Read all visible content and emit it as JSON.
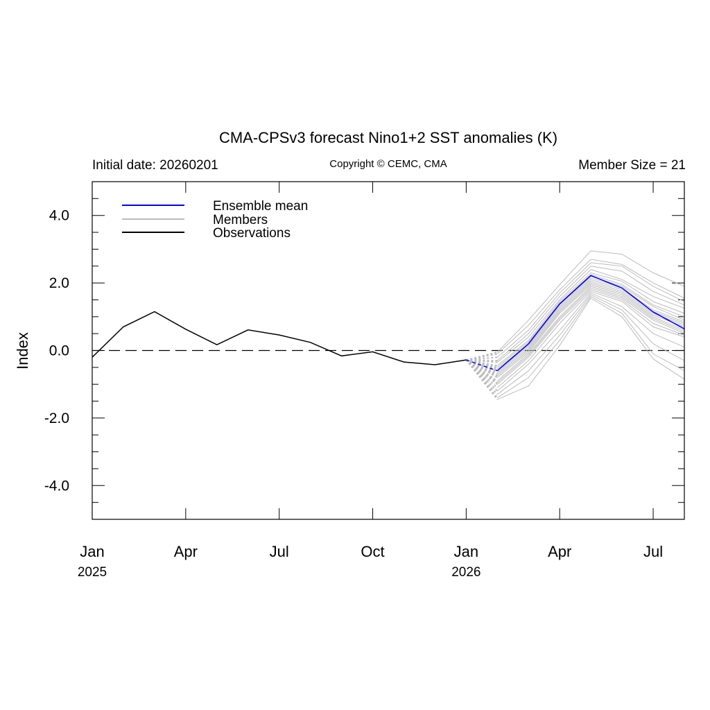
{
  "chart_data": {
    "type": "line",
    "title": "CMA-CPSv3 forecast Nino1+2 SST anomalies (K)",
    "subtitle_left": "Initial date: 20260201",
    "subtitle_center": "Copyright © CEMC, CMA",
    "subtitle_right": "Member Size = 21",
    "ylabel": "Index",
    "xlabel": "",
    "ylim": [
      -5,
      5
    ],
    "xlim": [
      0,
      19
    ],
    "y_ticks": [
      -4,
      -2,
      0,
      2,
      4
    ],
    "y_tick_labels": [
      "-4.0",
      "-2.0",
      "0.0",
      "2.0",
      "4.0"
    ],
    "x_ticks": [
      {
        "x": 0,
        "label": "Jan",
        "year": "2025"
      },
      {
        "x": 3,
        "label": "Apr",
        "year": ""
      },
      {
        "x": 6,
        "label": "Jul",
        "year": ""
      },
      {
        "x": 9,
        "label": "Oct",
        "year": ""
      },
      {
        "x": 12,
        "label": "Jan",
        "year": "2026"
      },
      {
        "x": 15,
        "label": "Apr",
        "year": ""
      },
      {
        "x": 18,
        "label": "Jul",
        "year": ""
      }
    ],
    "reference_line": 0,
    "legend": {
      "placement": "top-left",
      "entries": [
        {
          "label": "Ensemble mean",
          "color": "#0000ff"
        },
        {
          "label": "Members",
          "color": "#bbbbbb"
        },
        {
          "label": "Observations",
          "color": "#000000"
        }
      ]
    },
    "observations": {
      "name": "Observations",
      "color": "#000000",
      "x": [
        0,
        1,
        2,
        3,
        4,
        5,
        6,
        7,
        8,
        9,
        10,
        11,
        12
      ],
      "values": [
        -0.2,
        0.7,
        1.15,
        0.63,
        0.17,
        0.61,
        0.46,
        0.24,
        -0.16,
        -0.04,
        -0.34,
        -0.42,
        -0.28
      ]
    },
    "ensemble_mean": {
      "name": "Ensemble mean",
      "color": "#0000ff",
      "x": [
        13,
        14,
        15,
        16,
        17,
        18,
        19
      ],
      "values": [
        -0.6,
        0.2,
        1.38,
        2.22,
        1.85,
        1.14,
        0.64
      ]
    },
    "members": {
      "name": "Members",
      "color": "#bbbbbb",
      "x": [
        13,
        14,
        15,
        16,
        17,
        18,
        19
      ],
      "series": [
        [
          -0.05,
          0.9,
          1.95,
          2.95,
          2.85,
          2.3,
          1.9
        ],
        [
          -0.1,
          0.75,
          1.8,
          2.7,
          2.55,
          2.0,
          1.55
        ],
        [
          -0.2,
          0.6,
          1.7,
          2.6,
          2.5,
          1.9,
          1.45
        ],
        [
          -0.3,
          0.5,
          1.6,
          2.5,
          2.35,
          1.75,
          1.35
        ],
        [
          -0.35,
          0.4,
          1.5,
          2.4,
          2.1,
          1.6,
          1.25
        ],
        [
          -0.45,
          0.3,
          1.45,
          2.3,
          2.05,
          1.45,
          1.1
        ],
        [
          -0.5,
          0.25,
          1.4,
          2.25,
          1.95,
          1.35,
          1.0
        ],
        [
          -0.55,
          0.2,
          1.35,
          2.2,
          1.9,
          1.3,
          0.9
        ],
        [
          -0.6,
          0.15,
          1.3,
          2.15,
          1.85,
          1.2,
          0.85
        ],
        [
          -0.65,
          0.1,
          1.25,
          2.1,
          1.8,
          1.15,
          0.8
        ],
        [
          -0.7,
          0.05,
          1.2,
          2.05,
          1.75,
          1.1,
          0.75
        ],
        [
          -0.75,
          0.0,
          1.15,
          2.0,
          1.7,
          1.05,
          0.7
        ],
        [
          -0.8,
          -0.05,
          1.1,
          1.95,
          1.65,
          1.0,
          0.6
        ],
        [
          -0.9,
          -0.1,
          1.0,
          1.9,
          1.6,
          0.95,
          0.55
        ],
        [
          -0.95,
          -0.15,
          0.95,
          1.85,
          1.55,
          0.9,
          0.5
        ],
        [
          -1.0,
          -0.2,
          0.9,
          1.8,
          1.5,
          0.8,
          0.45
        ],
        [
          -1.1,
          -0.3,
          0.8,
          1.75,
          1.45,
          0.7,
          0.4
        ],
        [
          -1.2,
          -0.4,
          0.6,
          1.7,
          1.3,
          0.5,
          0.1
        ],
        [
          -1.3,
          -0.6,
          0.45,
          1.65,
          1.2,
          0.2,
          -0.3
        ],
        [
          -1.4,
          -0.8,
          0.3,
          1.6,
          1.1,
          -0.1,
          -0.6
        ],
        [
          -1.45,
          -1.05,
          0.15,
          1.55,
          1.0,
          -0.25,
          -0.85
        ]
      ]
    }
  }
}
